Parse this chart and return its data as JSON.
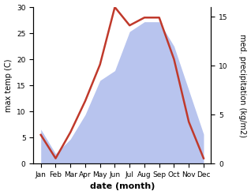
{
  "months": [
    "Jan",
    "Feb",
    "Mar",
    "Apr",
    "May",
    "Jun",
    "Jul",
    "Aug",
    "Sep",
    "Oct",
    "Nov",
    "Dec"
  ],
  "month_indices": [
    0,
    1,
    2,
    3,
    4,
    5,
    6,
    7,
    8,
    9,
    10,
    11
  ],
  "temperature": [
    5.5,
    1.0,
    6.0,
    12.0,
    19.0,
    30.0,
    26.5,
    28.0,
    28.0,
    20.0,
    8.0,
    1.0
  ],
  "precipitation": [
    3.5,
    1.0,
    2.5,
    5.0,
    8.5,
    9.5,
    13.5,
    14.5,
    14.5,
    12.0,
    7.5,
    3.0
  ],
  "temp_color": "#c0392b",
  "precip_fill_color": "#b8c4ee",
  "temp_ylim": [
    0,
    30
  ],
  "precip_ylim": [
    0,
    16
  ],
  "temp_yticks": [
    0,
    5,
    10,
    15,
    20,
    25,
    30
  ],
  "precip_yticks": [
    0,
    5,
    10,
    15
  ],
  "xlabel": "date (month)",
  "ylabel_left": "max temp (C)",
  "ylabel_right": "med. precipitation (kg/m2)",
  "line_width": 1.8,
  "background_color": "#ffffff",
  "label_fontsize": 7,
  "tick_fontsize": 6.5
}
